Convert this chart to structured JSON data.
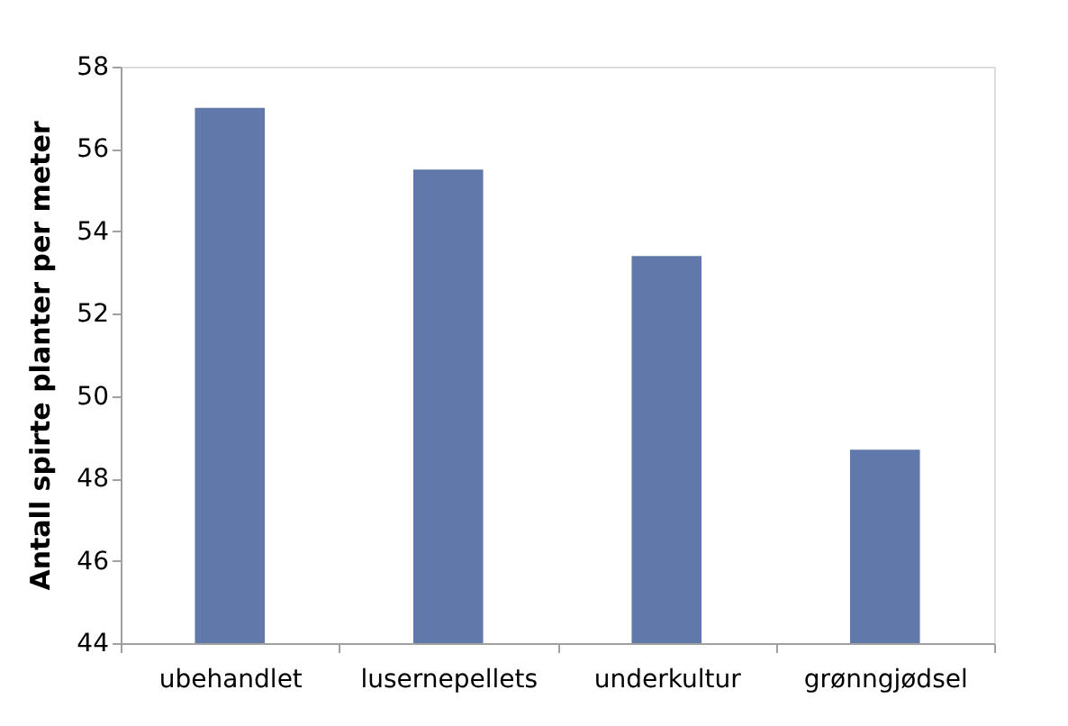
{
  "chart_data": {
    "type": "bar",
    "ylabel": "Antall spirte planter per meter",
    "categories": [
      "ubehandlet",
      "lusernepellets",
      "underkultur",
      "grønngjødsel"
    ],
    "values": [
      57.0,
      55.5,
      53.4,
      48.7
    ],
    "color": "#6179aa",
    "ylim": [
      44,
      58
    ],
    "yticks": [
      44,
      46,
      48,
      50,
      52,
      54,
      56,
      58
    ],
    "grid": false
  }
}
